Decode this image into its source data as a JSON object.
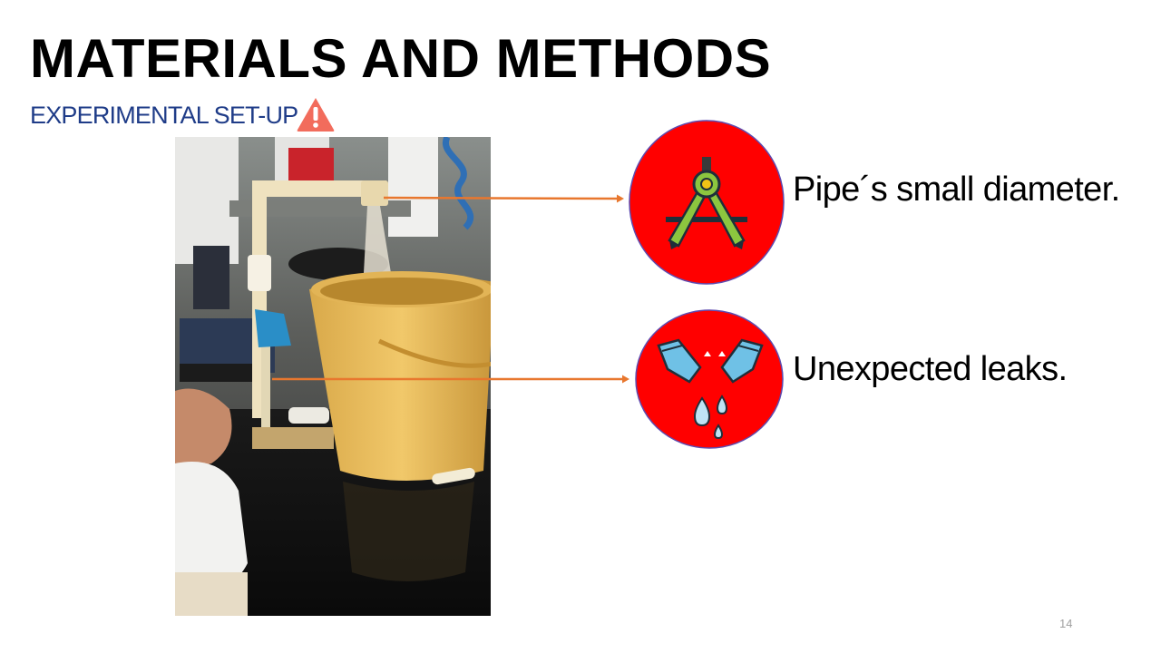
{
  "slide": {
    "title": "MATERIALS AND METHODS",
    "subtitle": "EXPERIMENTAL SET-UP",
    "page_number": "14"
  },
  "callouts": [
    {
      "label": "Pipe´s small diameter.",
      "icon": "compass-icon"
    },
    {
      "label": "Unexpected leaks.",
      "icon": "broken-pipe-leak-icon"
    }
  ],
  "colors": {
    "title": "#000000",
    "subtitle": "#1f3c88",
    "icon_circle": "#ff0000",
    "arrow": "#e8772e",
    "warning": "#f26c5c"
  }
}
